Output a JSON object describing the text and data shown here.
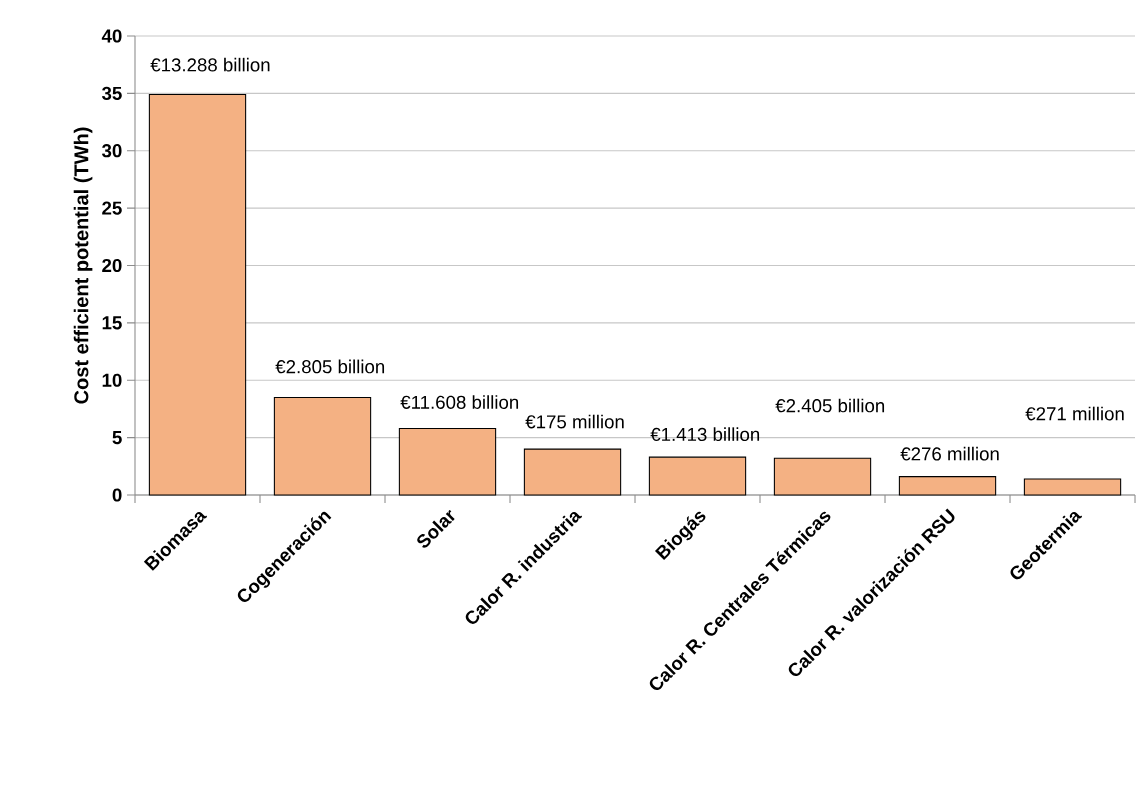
{
  "chart_data": {
    "type": "bar",
    "ylabel": "Cost efficient potential (TWh)",
    "categories": [
      "Biomasa",
      "Cogeneración",
      "Solar",
      "Calor  R. industria",
      "Biogás",
      "Calor R. Centrales Térmicas",
      "Calor R. valorización RSU",
      "Geotermia"
    ],
    "values": [
      34.9,
      8.5,
      5.8,
      4.0,
      3.3,
      3.2,
      1.6,
      1.4
    ],
    "color": "#f4b183",
    "ylim": [
      0,
      40
    ],
    "yticks": [
      0,
      5,
      10,
      15,
      20,
      25,
      30,
      35,
      40
    ],
    "grid": "y",
    "annotations": [
      "€13.288 billion",
      "€2.805 billion",
      "€11.608 billion",
      "€175 million",
      "€1.413 billion",
      "€2.405 billion",
      "€276 million",
      "€271 million"
    ]
  }
}
